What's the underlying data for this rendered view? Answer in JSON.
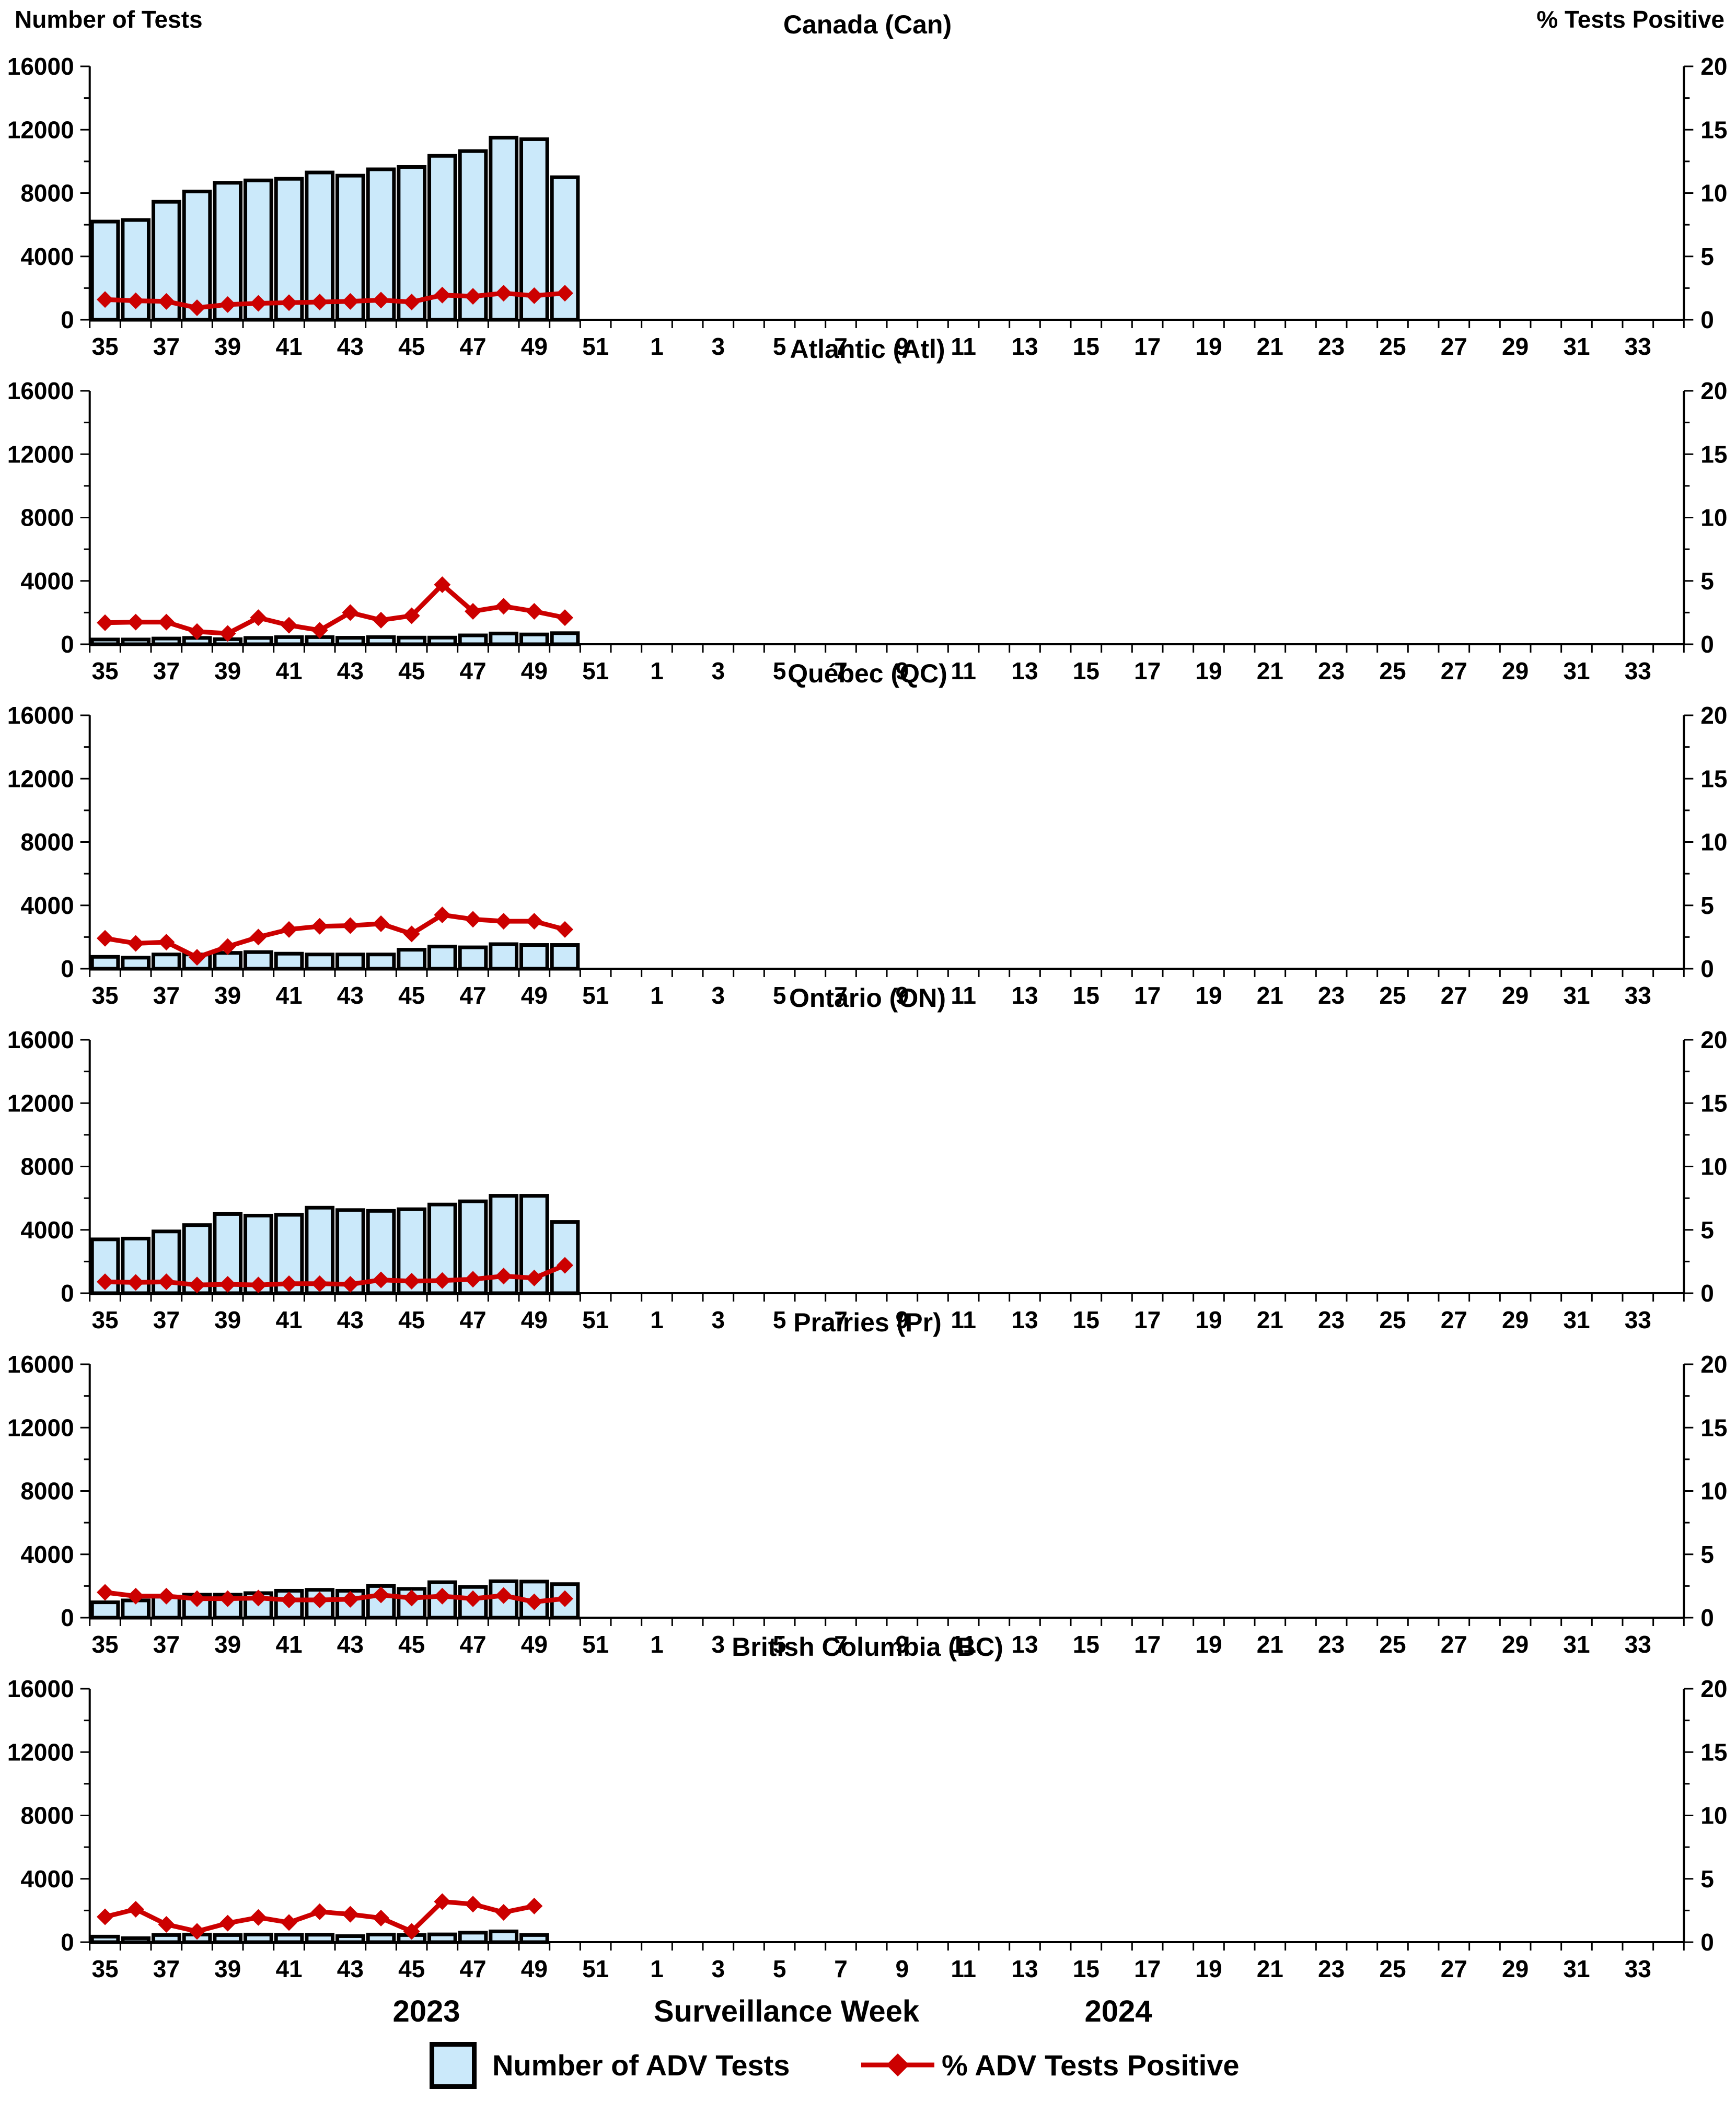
{
  "header": {
    "left_axis_title": "Number of Tests",
    "right_axis_title": "% Tests Positive"
  },
  "footer": {
    "year_left": "2023",
    "axis_title": "Surveillance Week",
    "year_right": "2024"
  },
  "legend": {
    "bar_label": "Number of ADV Tests",
    "line_label": "% ADV Tests Positive"
  },
  "colors": {
    "bar_fill": "#CBE9FA",
    "bar_stroke": "#000000",
    "line": "#CC0000"
  },
  "axes": {
    "left_ticks": [
      0,
      4000,
      8000,
      12000,
      16000
    ],
    "left_minor_ticks": [
      2000,
      6000,
      10000,
      14000
    ],
    "left_max": 16000,
    "right_ticks": [
      0,
      5,
      10,
      15,
      20
    ],
    "right_minor_ticks": [
      2.5,
      7.5,
      12.5,
      17.5
    ],
    "right_max": 20,
    "x_weeks": [
      35,
      36,
      37,
      38,
      39,
      40,
      41,
      42,
      43,
      44,
      45,
      46,
      47,
      48,
      49,
      50,
      51,
      52,
      1,
      2,
      3,
      4,
      5,
      6,
      7,
      8,
      9,
      10,
      11,
      12,
      13,
      14,
      15,
      16,
      17,
      18,
      19,
      20,
      21,
      22,
      23,
      24,
      25,
      26,
      27,
      28,
      29,
      30,
      31,
      32,
      33,
      34
    ],
    "x_labeled_weeks": [
      35,
      37,
      39,
      41,
      43,
      45,
      47,
      49,
      51,
      1,
      3,
      5,
      7,
      9,
      11,
      13,
      15,
      17,
      19,
      21,
      23,
      25,
      27,
      29,
      31,
      33
    ],
    "grid": false,
    "legend_position": "bottom"
  },
  "chart_data": [
    {
      "type": "bar+line",
      "title": "Canada (Can)",
      "weeks": [
        35,
        36,
        37,
        38,
        39,
        40,
        41,
        42,
        43,
        44,
        45,
        46,
        47,
        48,
        49,
        50
      ],
      "tests": [
        6200,
        6300,
        7450,
        8100,
        8650,
        8800,
        8900,
        9300,
        9100,
        9500,
        9650,
        10350,
        10650,
        11500,
        11400,
        9000
      ],
      "pct_positive": [
        1.6,
        1.5,
        1.45,
        0.95,
        1.2,
        1.3,
        1.35,
        1.4,
        1.45,
        1.55,
        1.4,
        1.95,
        1.85,
        2.1,
        1.9,
        2.1
      ]
    },
    {
      "type": "bar+line",
      "title": "Atlantic (Atl)",
      "weeks": [
        35,
        36,
        37,
        38,
        39,
        40,
        41,
        42,
        43,
        44,
        45,
        46,
        47,
        48,
        49,
        50
      ],
      "tests": [
        300,
        300,
        360,
        400,
        320,
        400,
        450,
        450,
        410,
        450,
        420,
        420,
        560,
        680,
        620,
        700
      ],
      "pct_positive": [
        1.7,
        1.75,
        1.75,
        1.0,
        0.85,
        2.1,
        1.5,
        1.1,
        2.5,
        1.9,
        2.25,
        4.7,
        2.6,
        3.0,
        2.6,
        2.1
      ]
    },
    {
      "type": "bar+line",
      "title": "Québec (QC)",
      "weeks": [
        35,
        36,
        37,
        38,
        39,
        40,
        41,
        42,
        43,
        44,
        45,
        46,
        47,
        48,
        49,
        50
      ],
      "tests": [
        750,
        700,
        900,
        900,
        1000,
        1050,
        950,
        900,
        900,
        900,
        1200,
        1400,
        1350,
        1550,
        1500,
        1500
      ],
      "pct_positive": [
        2.4,
        2.0,
        2.1,
        0.9,
        1.75,
        2.5,
        3.1,
        3.35,
        3.4,
        3.55,
        2.75,
        4.25,
        3.9,
        3.75,
        3.75,
        3.1
      ]
    },
    {
      "type": "bar+line",
      "title": "Ontario (ON)",
      "weeks": [
        35,
        36,
        37,
        38,
        39,
        40,
        41,
        42,
        43,
        44,
        45,
        46,
        47,
        48,
        49,
        50
      ],
      "tests": [
        3400,
        3450,
        3900,
        4300,
        5000,
        4900,
        4950,
        5400,
        5250,
        5200,
        5300,
        5600,
        5800,
        6150,
        6150,
        4500
      ],
      "pct_positive": [
        0.9,
        0.85,
        0.9,
        0.65,
        0.7,
        0.65,
        0.75,
        0.75,
        0.7,
        1.05,
        0.95,
        1.0,
        1.1,
        1.35,
        1.2,
        2.2
      ]
    },
    {
      "type": "bar+line",
      "title": "Prairies (Pr)",
      "weeks": [
        35,
        36,
        37,
        38,
        39,
        40,
        41,
        42,
        43,
        44,
        45,
        46,
        47,
        48,
        49,
        50
      ],
      "tests": [
        970,
        1090,
        1330,
        1450,
        1450,
        1550,
        1700,
        1760,
        1700,
        2000,
        1820,
        2240,
        1940,
        2300,
        2280,
        2120
      ],
      "pct_positive": [
        2.0,
        1.7,
        1.7,
        1.5,
        1.5,
        1.55,
        1.4,
        1.4,
        1.45,
        1.8,
        1.55,
        1.7,
        1.5,
        1.75,
        1.25,
        1.5
      ]
    },
    {
      "type": "bar+line",
      "title": "British Columbia (BC)",
      "weeks": [
        35,
        36,
        37,
        38,
        39,
        40,
        41,
        42,
        43,
        44,
        45,
        46,
        47,
        48,
        49
      ],
      "tests": [
        350,
        250,
        450,
        480,
        450,
        480,
        470,
        470,
        380,
        480,
        450,
        490,
        600,
        680,
        450
      ],
      "pct_positive": [
        2.0,
        2.6,
        1.4,
        0.85,
        1.5,
        1.95,
        1.55,
        2.4,
        2.2,
        1.9,
        0.85,
        3.2,
        3.0,
        2.35,
        2.85
      ]
    }
  ]
}
